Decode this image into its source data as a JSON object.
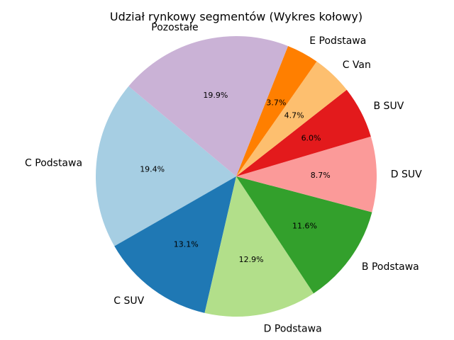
{
  "chart_data": {
    "type": "pie",
    "title": "Udział rynkowy segmentów (Wykres kołowy)",
    "start_angle_deg": 140,
    "direction": "counterclockwise",
    "slices": [
      {
        "label": "C Podstawa",
        "value": 19.4,
        "pct_label": "19.4%",
        "color": "#a6cee3"
      },
      {
        "label": "C SUV",
        "value": 13.1,
        "pct_label": "13.1%",
        "color": "#1f78b4"
      },
      {
        "label": "D Podstawa",
        "value": 12.9,
        "pct_label": "12.9%",
        "color": "#b2df8a"
      },
      {
        "label": "B Podstawa",
        "value": 11.6,
        "pct_label": "11.6%",
        "color": "#33a02c"
      },
      {
        "label": "D SUV",
        "value": 8.7,
        "pct_label": "8.7%",
        "color": "#fb9a99"
      },
      {
        "label": "B SUV",
        "value": 6.0,
        "pct_label": "6.0%",
        "color": "#e31a1c"
      },
      {
        "label": "C Van",
        "value": 4.7,
        "pct_label": "4.7%",
        "color": "#fdbf6f"
      },
      {
        "label": "E Podstawa",
        "value": 3.7,
        "pct_label": "3.7%",
        "color": "#ff7f00"
      },
      {
        "label": "Pozostałe",
        "value": 19.9,
        "pct_label": "19.9%",
        "color": "#cab2d6"
      }
    ]
  }
}
